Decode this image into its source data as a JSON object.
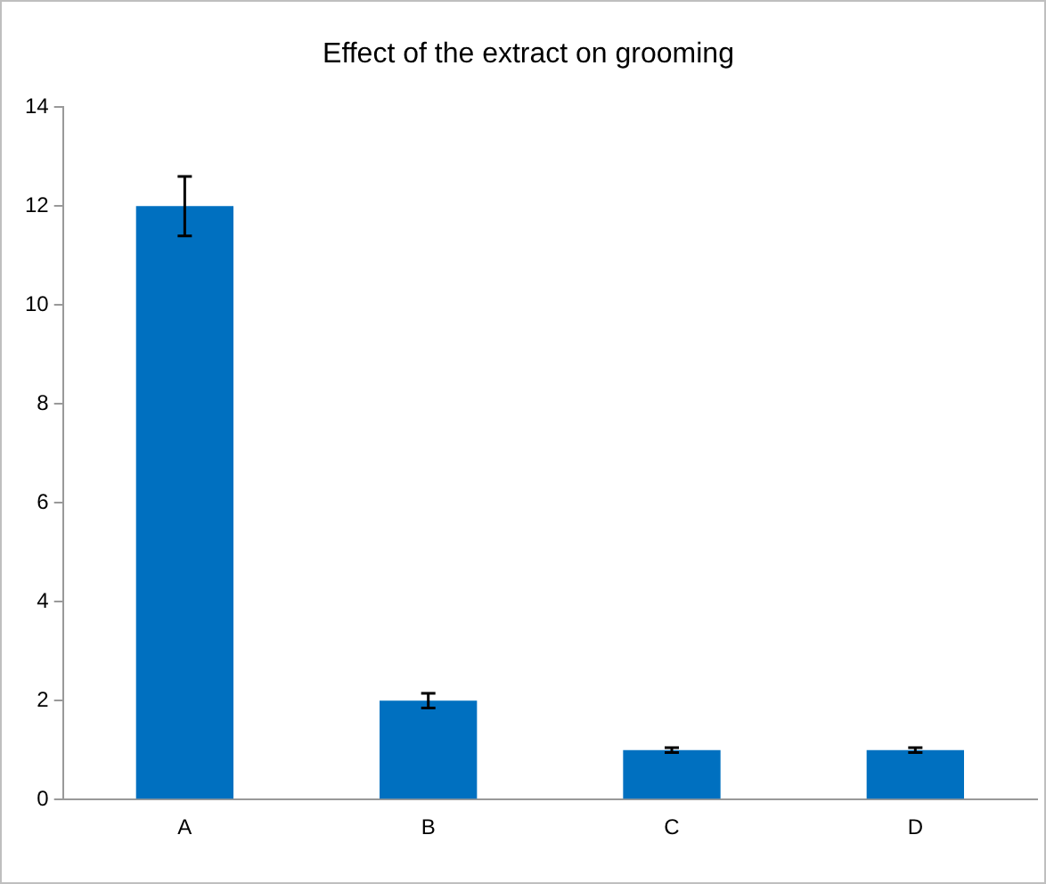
{
  "chart_data": {
    "type": "bar",
    "title": "Effect of the extract on grooming",
    "categories": [
      "A",
      "B",
      "C",
      "D"
    ],
    "series": [
      {
        "color": "#0070c0",
        "values": [
          12,
          2,
          1,
          1
        ],
        "errors": [
          0.6,
          0.15,
          0.05,
          0.05
        ]
      }
    ],
    "ylim": [
      0,
      14
    ],
    "yticks": [
      0,
      2,
      4,
      6,
      8,
      10,
      12,
      14
    ],
    "grid": false,
    "legend": false
  }
}
